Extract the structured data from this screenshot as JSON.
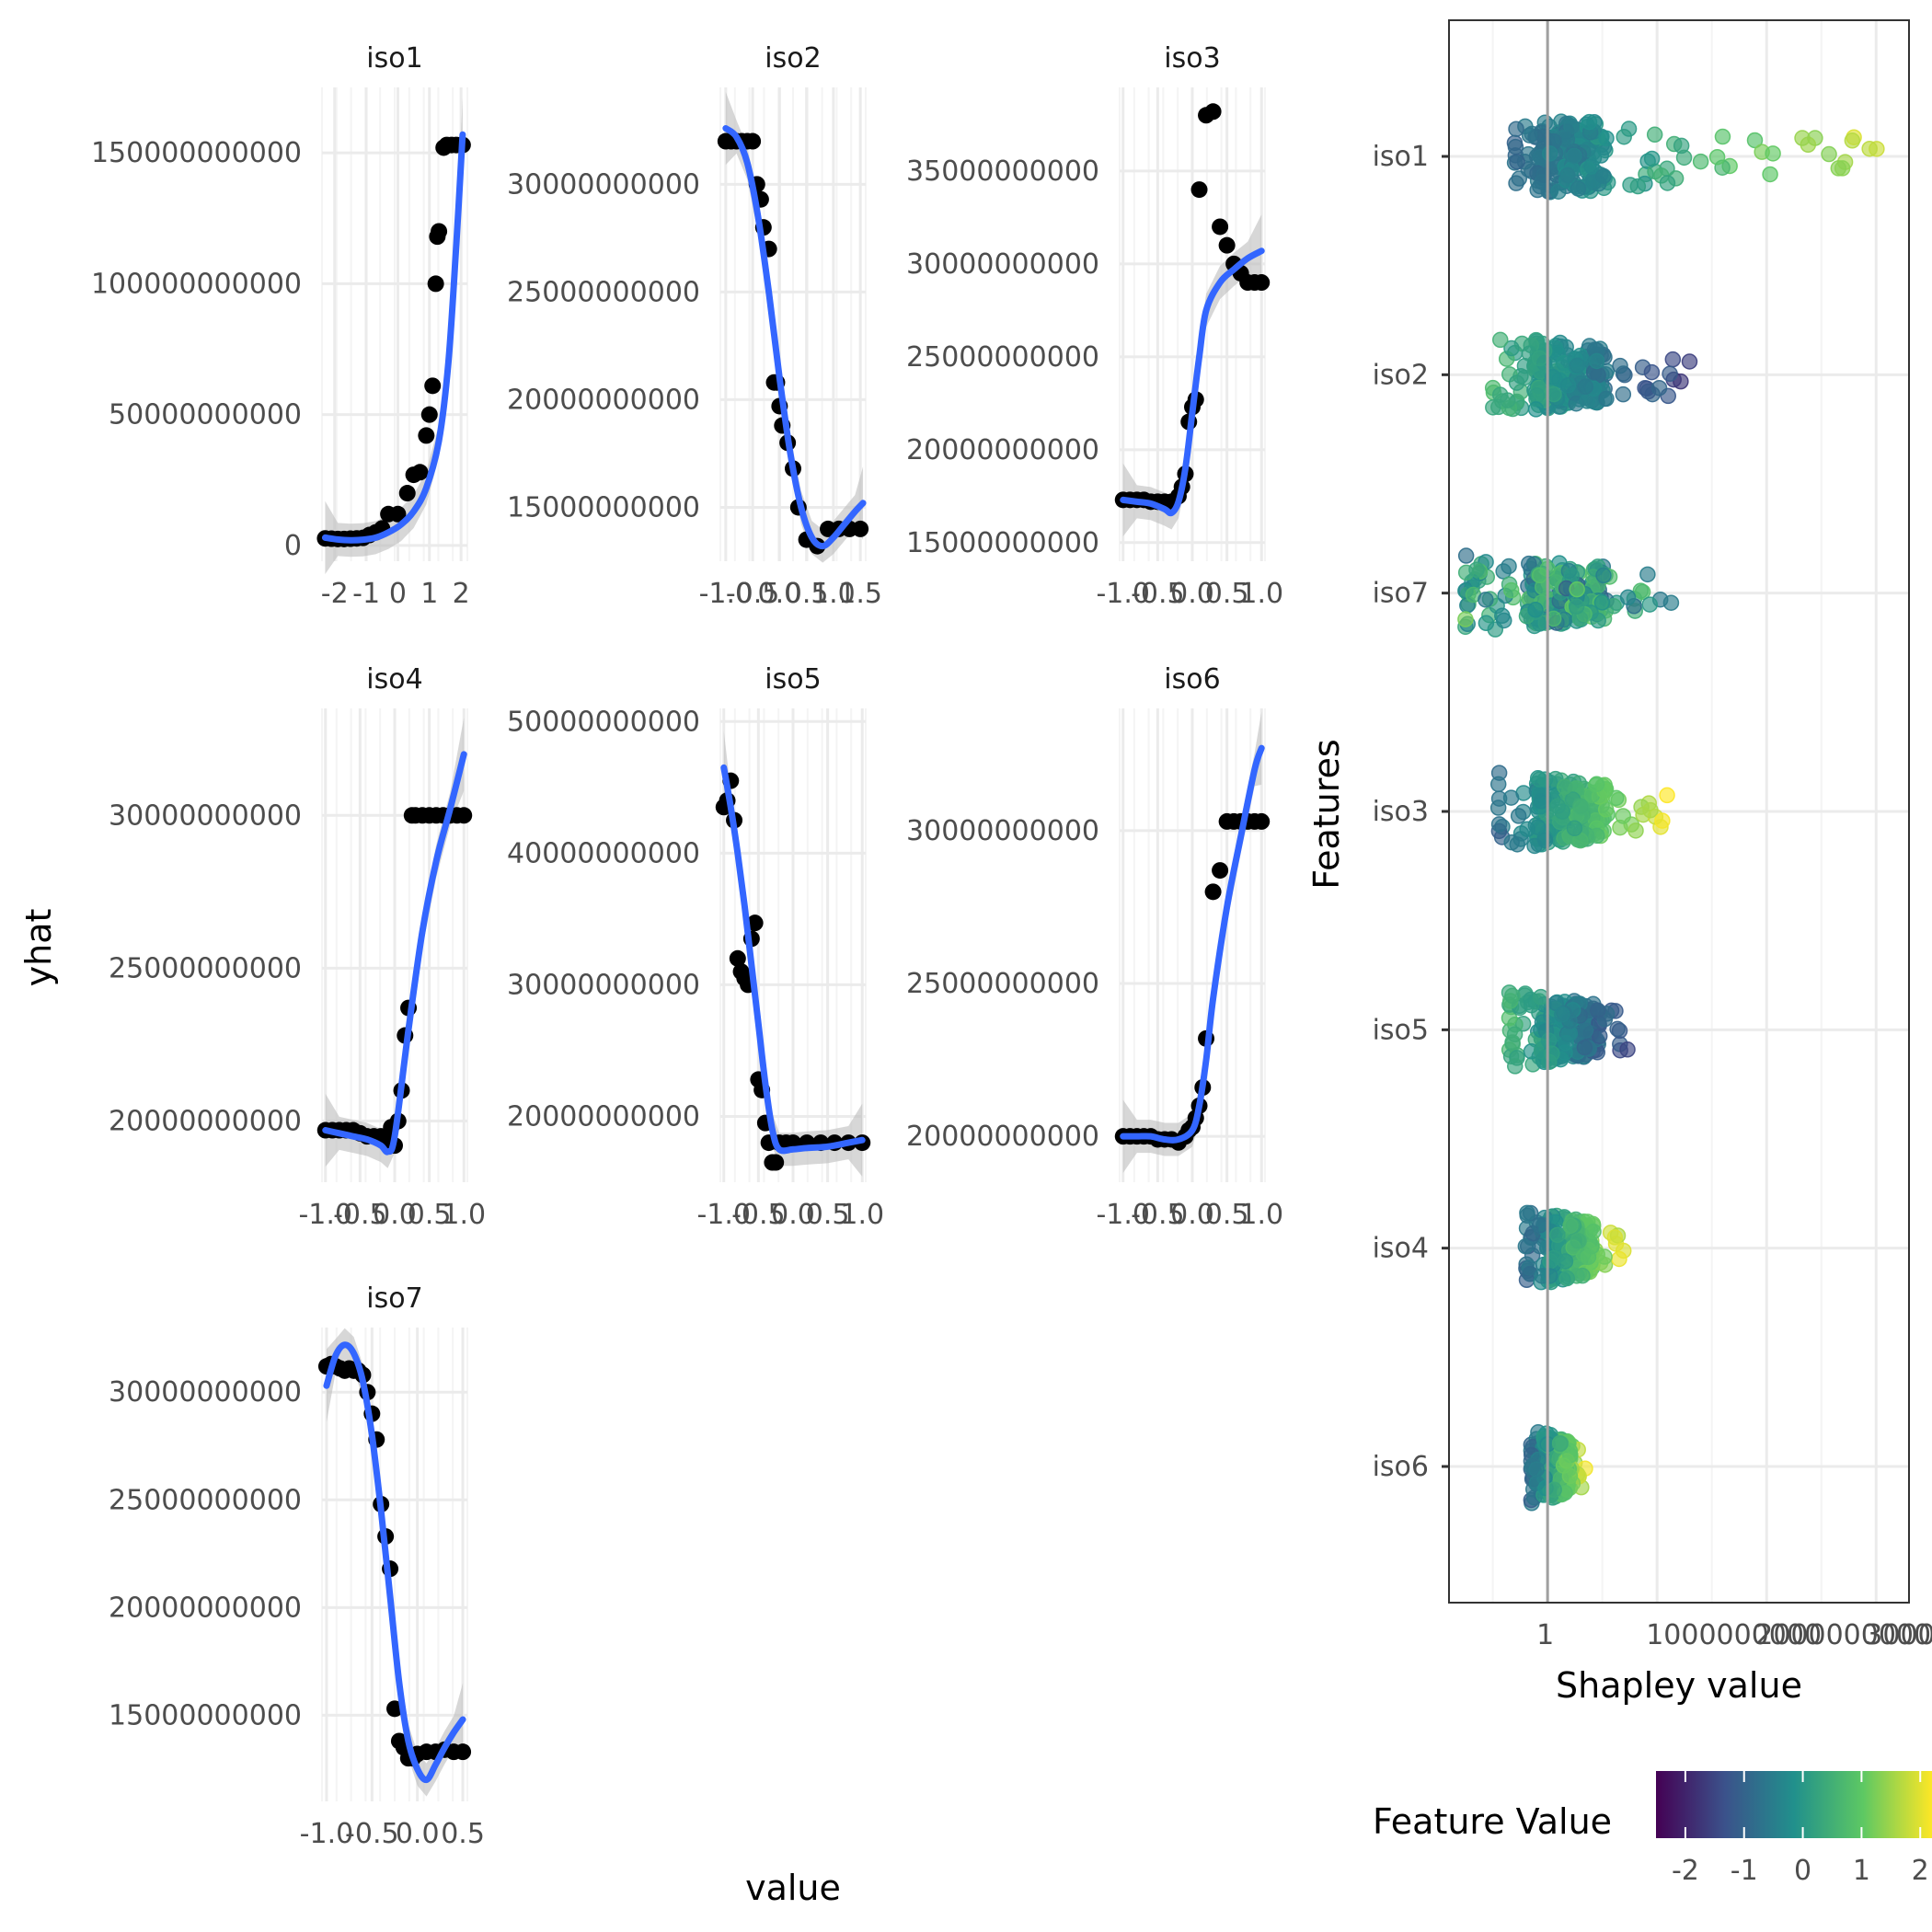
{
  "chart_data": [
    {
      "type": "scatter",
      "title": "iso1",
      "x": [
        -2.3,
        -2.1,
        -1.9,
        -1.7,
        -1.5,
        -1.3,
        -1.1,
        -0.9,
        -0.7,
        -0.5,
        -0.3,
        0.0,
        0.3,
        0.5,
        0.7,
        0.9,
        1.0,
        1.1,
        1.2,
        1.25,
        1.3,
        1.45,
        1.55,
        1.7,
        1.85,
        2.0,
        2.05
      ],
      "y": [
        2700000000.0,
        2600000000.0,
        2500000000.0,
        2500000000.0,
        2600000000.0,
        2700000000.0,
        2900000000.0,
        4000000000.0,
        5000000000.0,
        6500000000.0,
        12000000000.0,
        12000000000.0,
        20000000000.0,
        27000000000.0,
        28000000000.0,
        42000000000.0,
        50000000000.0,
        61000000000.0,
        100000000000.0,
        118000000000.0,
        120000000000.0,
        152000000000.0,
        153000000000.0,
        153000000000.0,
        153000000000.0,
        153000000000.0,
        153000000000.0
      ],
      "fit_y": [
        3000000000.0,
        2300000000.0,
        2000000000.0,
        2200000000.0,
        3000000000.0,
        5000000000.0,
        8000000000.0,
        13000000000.0,
        22000000000.0,
        40000000000.0,
        70000000000.0,
        115000000000.0,
        157000000000.0
      ],
      "fit_x": [
        -2.3,
        -1.9,
        -1.5,
        -1.1,
        -0.7,
        -0.3,
        0.1,
        0.5,
        0.9,
        1.3,
        1.6,
        1.85,
        2.05
      ],
      "ylabel": "yhat",
      "yticks": [
        "0",
        "50000000000",
        "100000000000",
        "150000000000"
      ],
      "xticks": [
        "-2",
        "-1",
        "0",
        "1",
        "2"
      ],
      "xlim": [
        -2.4,
        2.2
      ],
      "ylim": [
        -6000000000.0,
        175000000000.0
      ]
    },
    {
      "type": "scatter",
      "title": "iso2",
      "x": [
        -1.0,
        -0.9,
        -0.8,
        -0.7,
        -0.6,
        -0.5,
        -0.42,
        -0.35,
        -0.3,
        -0.2,
        -0.1,
        -0.05,
        0.0,
        0.05,
        0.15,
        0.25,
        0.35,
        0.5,
        0.7,
        0.9,
        1.1,
        1.3,
        1.5
      ],
      "y": [
        32000000000.0,
        32000000000.0,
        32000000000.0,
        32000000000.0,
        32000000000.0,
        32000000000.0,
        30000000000.0,
        29300000000.0,
        28000000000.0,
        27000000000.0,
        20800000000.0,
        20800000000.0,
        19700000000.0,
        18800000000.0,
        18000000000.0,
        16800000000.0,
        15000000000.0,
        13500000000.0,
        13200000000.0,
        14000000000.0,
        14000000000.0,
        14000000000.0,
        14000000000.0
      ],
      "fit_x": [
        -1.0,
        -0.8,
        -0.6,
        -0.4,
        -0.2,
        0.0,
        0.2,
        0.4,
        0.6,
        0.8,
        1.0,
        1.2,
        1.4,
        1.55
      ],
      "fit_y": [
        32600000000.0,
        32200000000.0,
        31000000000.0,
        28500000000.0,
        25000000000.0,
        21000000000.0,
        17500000000.0,
        15000000000.0,
        13600000000.0,
        13200000000.0,
        13600000000.0,
        14200000000.0,
        14800000000.0,
        15200000000.0
      ],
      "yticks": [
        "15000000000",
        "20000000000",
        "25000000000",
        "30000000000"
      ],
      "xticks": [
        "-1.0",
        "-0.5",
        "0.0",
        "0.5",
        "1.0",
        "1.5"
      ],
      "xlim": [
        -1.1,
        1.6
      ],
      "ylim": [
        12500000000.0,
        34500000000.0
      ]
    },
    {
      "type": "scatter",
      "title": "iso3",
      "x": [
        -1.0,
        -0.9,
        -0.8,
        -0.7,
        -0.6,
        -0.5,
        -0.4,
        -0.3,
        -0.2,
        -0.15,
        -0.1,
        -0.05,
        0.0,
        0.05,
        0.1,
        0.2,
        0.3,
        0.4,
        0.5,
        0.6,
        0.7,
        0.8,
        0.9,
        1.0
      ],
      "y": [
        17300000000.0,
        17300000000.0,
        17300000000.0,
        17300000000.0,
        17200000000.0,
        17200000000.0,
        17200000000.0,
        17200000000.0,
        17500000000.0,
        18000000000.0,
        18700000000.0,
        21500000000.0,
        22300000000.0,
        22700000000.0,
        34000000000.0,
        38000000000.0,
        38200000000.0,
        32000000000.0,
        31000000000.0,
        30000000000.0,
        29500000000.0,
        29000000000.0,
        29000000000.0,
        29000000000.0
      ],
      "fit_x": [
        -1.0,
        -0.8,
        -0.6,
        -0.4,
        -0.3,
        -0.2,
        -0.1,
        0.0,
        0.1,
        0.2,
        0.4,
        0.6,
        0.8,
        1.0
      ],
      "fit_y": [
        17300000000.0,
        17200000000.0,
        17100000000.0,
        16800000000.0,
        16600000000.0,
        17200000000.0,
        19000000000.0,
        22000000000.0,
        25000000000.0,
        27500000000.0,
        29000000000.0,
        29700000000.0,
        30300000000.0,
        30700000000.0
      ],
      "yticks": [
        "15000000000",
        "20000000000",
        "25000000000",
        "30000000000",
        "35000000000"
      ],
      "xticks": [
        "-1.0",
        "-0.5",
        "0.0",
        "0.5",
        "1.0"
      ],
      "xlim": [
        -1.05,
        1.05
      ],
      "ylim": [
        14000000000.0,
        39500000000.0
      ]
    },
    {
      "type": "scatter",
      "title": "iso4",
      "x": [
        -1.0,
        -0.9,
        -0.8,
        -0.7,
        -0.6,
        -0.5,
        -0.4,
        -0.3,
        -0.2,
        -0.1,
        -0.05,
        0.0,
        0.05,
        0.1,
        0.15,
        0.2,
        0.25,
        0.3,
        0.4,
        0.5,
        0.6,
        0.7,
        0.8,
        0.9,
        1.0
      ],
      "y": [
        19700000000.0,
        19700000000.0,
        19700000000.0,
        19700000000.0,
        19700000000.0,
        19600000000.0,
        19500000000.0,
        19500000000.0,
        19500000000.0,
        19400000000.0,
        19800000000.0,
        19200000000.0,
        20000000000.0,
        21000000000.0,
        22800000000.0,
        23700000000.0,
        30000000000.0,
        30000000000.0,
        30000000000.0,
        30000000000.0,
        30000000000.0,
        30000000000.0,
        30000000000.0,
        30000000000.0,
        30000000000.0
      ],
      "fit_x": [
        -1.0,
        -0.8,
        -0.6,
        -0.4,
        -0.2,
        -0.1,
        0.0,
        0.2,
        0.4,
        0.6,
        0.8,
        1.0
      ],
      "fit_y": [
        19700000000.0,
        19600000000.0,
        19500000000.0,
        19400000000.0,
        19200000000.0,
        19000000000.0,
        19500000000.0,
        23000000000.0,
        26200000000.0,
        28500000000.0,
        30200000000.0,
        32000000000.0
      ],
      "yticks": [
        "20000000000",
        "25000000000",
        "30000000000"
      ],
      "xticks": [
        "-1.0",
        "-0.5",
        "0.0",
        "0.5",
        "1.0"
      ],
      "xlim": [
        -1.05,
        1.05
      ],
      "ylim": [
        18000000000.0,
        33500000000.0
      ]
    },
    {
      "type": "scatter",
      "title": "iso5",
      "x": [
        -1.0,
        -0.95,
        -0.9,
        -0.85,
        -0.8,
        -0.75,
        -0.7,
        -0.65,
        -0.6,
        -0.55,
        -0.5,
        -0.45,
        -0.4,
        -0.35,
        -0.3,
        -0.25,
        -0.2,
        -0.1,
        0.0,
        0.2,
        0.4,
        0.6,
        0.8,
        1.0
      ],
      "y": [
        43500000000.0,
        44000000000.0,
        45500000000.0,
        42500000000.0,
        32000000000.0,
        31000000000.0,
        30500000000.0,
        30000000000.0,
        33500000000.0,
        34700000000.0,
        22800000000.0,
        22000000000.0,
        19500000000.0,
        18000000000.0,
        16500000000.0,
        16500000000.0,
        18000000000.0,
        18000000000.0,
        18000000000.0,
        18000000000.0,
        18000000000.0,
        18000000000.0,
        18000000000.0,
        18000000000.0
      ],
      "fit_x": [
        -1.0,
        -0.9,
        -0.8,
        -0.7,
        -0.6,
        -0.5,
        -0.4,
        -0.3,
        -0.2,
        0.0,
        0.2,
        0.5,
        0.8,
        1.0
      ],
      "fit_y": [
        46500000000.0,
        43500000000.0,
        40000000000.0,
        36000000000.0,
        31500000000.0,
        27000000000.0,
        22500000000.0,
        19000000000.0,
        17500000000.0,
        17500000000.0,
        17600000000.0,
        17700000000.0,
        18000000000.0,
        18200000000.0
      ],
      "yticks": [
        "20000000000",
        "30000000000",
        "40000000000",
        "50000000000"
      ],
      "xticks": [
        "-1.0",
        "-0.5",
        "0.0",
        "0.5",
        "1.0"
      ],
      "xlim": [
        -1.05,
        1.05
      ],
      "ylim": [
        15000000000.0,
        51000000000.0
      ]
    },
    {
      "type": "scatter",
      "title": "iso6",
      "x": [
        -1.0,
        -0.9,
        -0.8,
        -0.7,
        -0.6,
        -0.5,
        -0.4,
        -0.3,
        -0.2,
        -0.1,
        -0.05,
        0.0,
        0.05,
        0.1,
        0.15,
        0.2,
        0.3,
        0.4,
        0.5,
        0.6,
        0.7,
        0.8,
        0.9,
        1.0
      ],
      "y": [
        20000000000.0,
        20000000000.0,
        20000000000.0,
        20000000000.0,
        20000000000.0,
        19900000000.0,
        19900000000.0,
        19900000000.0,
        19800000000.0,
        20000000000.0,
        20200000000.0,
        20300000000.0,
        20600000000.0,
        21000000000.0,
        21600000000.0,
        23200000000.0,
        28000000000.0,
        28700000000.0,
        30300000000.0,
        30300000000.0,
        30300000000.0,
        30300000000.0,
        30300000000.0,
        30300000000.0
      ],
      "fit_x": [
        -1.0,
        -0.8,
        -0.6,
        -0.4,
        -0.2,
        0.0,
        0.1,
        0.2,
        0.3,
        0.5,
        0.7,
        0.9,
        1.0
      ],
      "fit_y": [
        20000000000.0,
        20000000000.0,
        20000000000.0,
        19900000000.0,
        19900000000.0,
        20200000000.0,
        21000000000.0,
        22500000000.0,
        24500000000.0,
        27500000000.0,
        29800000000.0,
        32000000000.0,
        32700000000.0
      ],
      "yticks": [
        "20000000000",
        "25000000000",
        "30000000000"
      ],
      "xticks": [
        "-1.0",
        "-0.5",
        "0.0",
        "0.5",
        "1.0"
      ],
      "xlim": [
        -1.05,
        1.05
      ],
      "ylim": [
        18500000000.0,
        34000000000.0
      ]
    },
    {
      "type": "scatter",
      "title": "iso7",
      "x": [
        -1.0,
        -0.95,
        -0.9,
        -0.85,
        -0.8,
        -0.75,
        -0.7,
        -0.65,
        -0.6,
        -0.55,
        -0.5,
        -0.45,
        -0.4,
        -0.35,
        -0.3,
        -0.25,
        -0.2,
        -0.15,
        -0.1,
        -0.05,
        0.0,
        0.1,
        0.2,
        0.3,
        0.4,
        0.5
      ],
      "y": [
        31200000000.0,
        31300000000.0,
        31200000000.0,
        31100000000.0,
        31000000000.0,
        31100000000.0,
        31000000000.0,
        31000000000.0,
        30800000000.0,
        30000000000.0,
        29000000000.0,
        27800000000.0,
        24800000000.0,
        23300000000.0,
        21800000000.0,
        15300000000.0,
        13800000000.0,
        13500000000.0,
        13000000000.0,
        13000000000.0,
        13200000000.0,
        13300000000.0,
        13300000000.0,
        13400000000.0,
        13300000000.0,
        13300000000.0
      ],
      "fit_x": [
        -1.0,
        -0.9,
        -0.8,
        -0.7,
        -0.6,
        -0.5,
        -0.4,
        -0.3,
        -0.2,
        -0.1,
        0.0,
        0.1,
        0.2,
        0.3,
        0.4,
        0.5
      ],
      "fit_y": [
        30300000000.0,
        31700000000.0,
        32200000000.0,
        31800000000.0,
        30500000000.0,
        28000000000.0,
        24500000000.0,
        20500000000.0,
        16500000000.0,
        13800000000.0,
        12500000000.0,
        12000000000.0,
        12700000000.0,
        13500000000.0,
        14200000000.0,
        14800000000.0
      ],
      "yticks": [
        "15000000000",
        "20000000000",
        "25000000000",
        "30000000000"
      ],
      "xticks": [
        "-1.0",
        "-0.5",
        "0.0",
        "0.5"
      ],
      "xlim": [
        -1.05,
        0.55
      ],
      "ylim": [
        11000000000.0,
        33000000000.0
      ]
    },
    {
      "type": "scatter",
      "title": "",
      "xlabel": "Shapley value",
      "ylabel": "Features",
      "categories": [
        "iso1",
        "iso2",
        "iso7",
        "iso3",
        "iso5",
        "iso4",
        "iso6"
      ],
      "xticks": [
        "1",
        "1000000000",
        "2000000000",
        "3000000000"
      ],
      "xlim": [
        -900000000,
        3300000000
      ],
      "series": [
        {
          "name": "iso1",
          "range": [
            -300000000,
            3100000000
          ],
          "color_trend": "low-to-high"
        },
        {
          "name": "iso2",
          "range": [
            -500000000,
            1300000000
          ],
          "color_trend": "high-to-low"
        },
        {
          "name": "iso7",
          "range": [
            -750000000,
            1350000000
          ],
          "color_trend": "mixed"
        },
        {
          "name": "iso3",
          "range": [
            -450000000,
            1100000000
          ],
          "color_trend": "low-to-high"
        },
        {
          "name": "iso5",
          "range": [
            -350000000,
            800000000
          ],
          "color_trend": "high-to-low"
        },
        {
          "name": "iso4",
          "range": [
            -200000000,
            700000000
          ],
          "color_trend": "low-to-high"
        },
        {
          "name": "iso6",
          "range": [
            -150000000,
            350000000
          ],
          "color_trend": "low-to-high"
        }
      ]
    }
  ],
  "labels": {
    "yhat": "yhat",
    "value": "value",
    "features": "Features",
    "shapley": "Shapley value",
    "legend_title": "Feature Value"
  },
  "legend": {
    "ticks": [
      "-2",
      "-1",
      "0",
      "1",
      "2"
    ],
    "range": [
      -2.5,
      2.2
    ]
  },
  "colors": {
    "point": "#000000",
    "fit": "#3366ff",
    "ribbon": "#bdbdbd",
    "grid_major": "#ebebeb",
    "grid_minor": "#f4f4f4",
    "zero_line": "#a0a0a0",
    "viridis": [
      "#440154",
      "#3b528b",
      "#21908c",
      "#5dc863",
      "#fde725"
    ]
  }
}
